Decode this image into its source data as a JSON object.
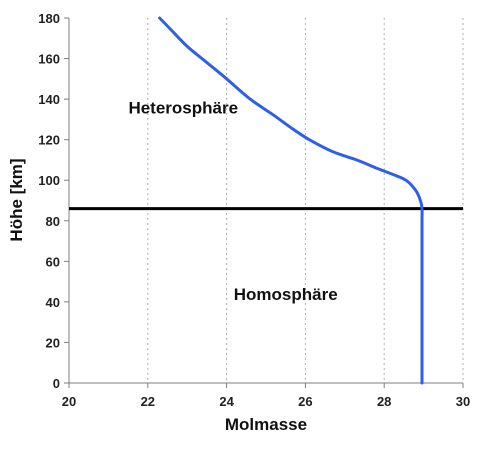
{
  "chart_data": {
    "type": "line",
    "title": "",
    "xlabel": "Molmasse",
    "ylabel": "Höhe [km]",
    "xlim": [
      20,
      30
    ],
    "ylim": [
      0,
      180
    ],
    "xticks": [
      20,
      22,
      24,
      26,
      28,
      30
    ],
    "yticks": [
      0,
      20,
      40,
      60,
      80,
      100,
      120,
      140,
      160,
      180
    ],
    "grid": {
      "vertical": true,
      "horizontal": false,
      "style": "dotted"
    },
    "series": [
      {
        "color": "#2f5fe6",
        "points": [
          [
            28.96,
            0
          ],
          [
            28.96,
            20
          ],
          [
            28.96,
            40
          ],
          [
            28.96,
            60
          ],
          [
            28.96,
            80
          ],
          [
            28.96,
            86
          ],
          [
            28.92,
            90
          ],
          [
            28.8,
            95
          ],
          [
            28.55,
            100
          ],
          [
            28.2,
            103
          ],
          [
            27.8,
            106
          ],
          [
            27.3,
            110
          ],
          [
            26.7,
            114
          ],
          [
            26.1,
            120
          ],
          [
            25.7,
            125
          ],
          [
            25.2,
            132
          ],
          [
            24.6,
            140
          ],
          [
            24.0,
            150
          ],
          [
            23.5,
            158
          ],
          [
            23.0,
            166
          ],
          [
            22.6,
            174
          ],
          [
            22.3,
            180
          ]
        ]
      }
    ],
    "reference_line": {
      "y": 86,
      "color": "#000000"
    },
    "annotations": [
      {
        "text": "Heterosphäre",
        "x": 22.9,
        "y": 133
      },
      {
        "text": "Homosphäre",
        "x": 25.5,
        "y": 41
      }
    ]
  },
  "colors": {
    "line": "#2f5fe6",
    "reference": "#000000",
    "grid": "#b0b0b0",
    "axis": "#7f7f7f"
  }
}
